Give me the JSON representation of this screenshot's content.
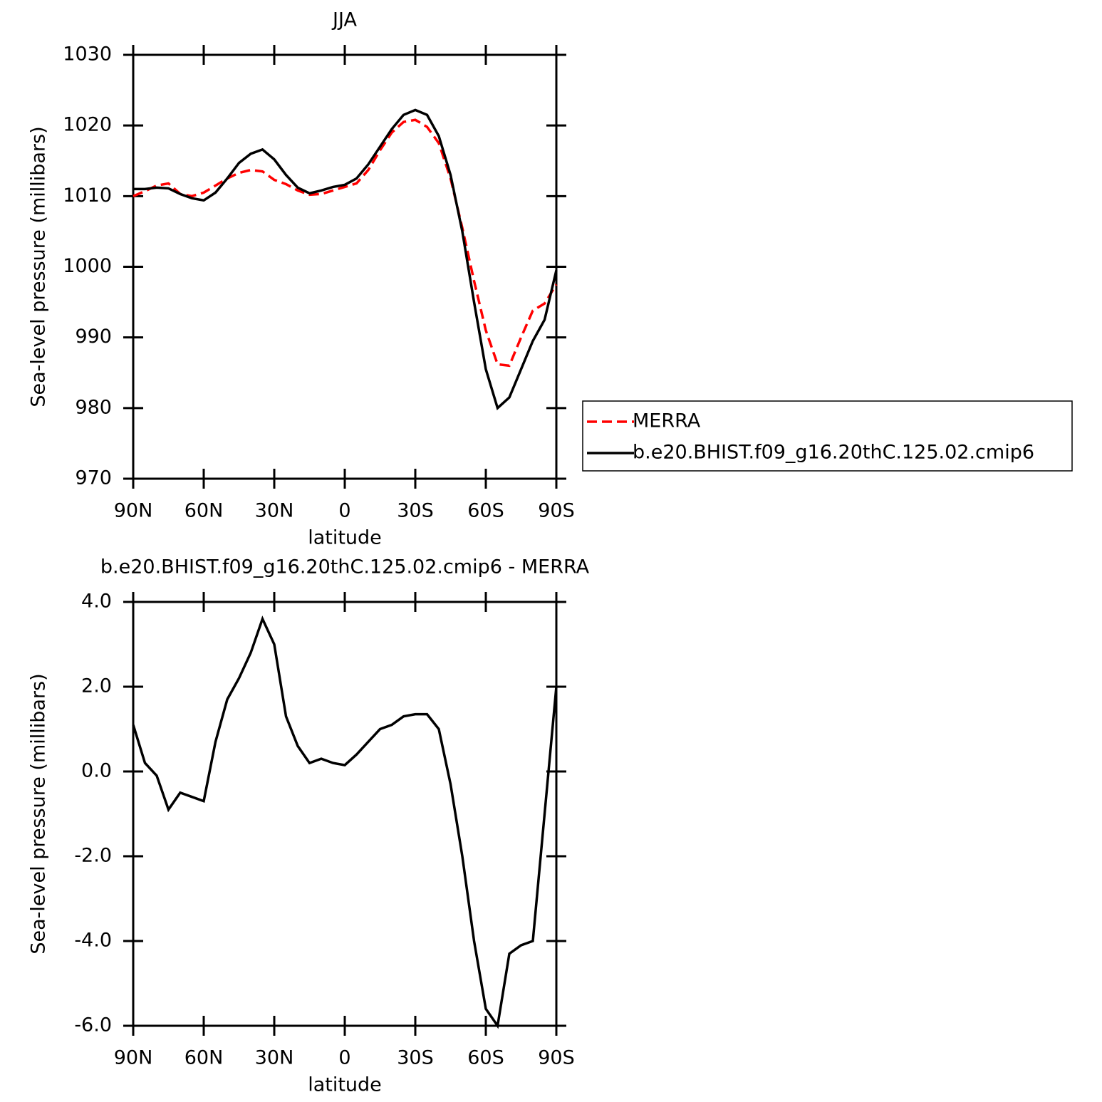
{
  "chart_data": [
    {
      "type": "line",
      "title": "JJA",
      "xlabel": "latitude",
      "ylabel": "Sea-level pressure (millibars)",
      "x": [
        90,
        85,
        80,
        75,
        70,
        65,
        60,
        55,
        50,
        45,
        40,
        35,
        30,
        25,
        20,
        15,
        10,
        5,
        0,
        -5,
        -10,
        -15,
        -20,
        -25,
        -30,
        -35,
        -40,
        -45,
        -50,
        -55,
        -60,
        -65,
        -70,
        -75,
        -80,
        -85,
        -90
      ],
      "xlim": [
        90,
        -90
      ],
      "xticks": [
        {
          "value": 90,
          "label": "90N"
        },
        {
          "value": 60,
          "label": "60N"
        },
        {
          "value": 30,
          "label": "30N"
        },
        0,
        {
          "value": -30,
          "label": "30S"
        },
        {
          "value": -60,
          "label": "60S"
        },
        {
          "value": -90,
          "label": "90S"
        }
      ],
      "ylim": [
        970,
        1030
      ],
      "yticks": [
        970,
        980,
        990,
        1000,
        1010,
        1020,
        1030
      ],
      "legend": "right",
      "series": [
        {
          "name": "MERRA",
          "color": "#ff0000",
          "dashed": true,
          "values": [
            1010,
            1010.7,
            1011.5,
            1011.8,
            1010.3,
            1010,
            1010.5,
            1011.5,
            1012.5,
            1013.3,
            1013.7,
            1013.5,
            1012.3,
            1011.7,
            1010.8,
            1010.2,
            1010.3,
            1010.8,
            1011.3,
            1011.8,
            1013.7,
            1016.5,
            1019,
            1020.5,
            1020.8,
            1019.8,
            1017.5,
            1012.5,
            1005.5,
            998,
            991,
            986.2,
            986,
            990,
            993.8,
            994.8,
            997.5
          ]
        },
        {
          "name": "b.e20.BHIST.f09_g16.20thC.125.02.cmip6",
          "color": "#000000",
          "dashed": false,
          "values": [
            1011,
            1011,
            1011.2,
            1011.1,
            1010.3,
            1009.7,
            1009.4,
            1010.5,
            1012.5,
            1014.7,
            1016,
            1016.6,
            1015.2,
            1013,
            1011.2,
            1010.4,
            1010.8,
            1011.3,
            1011.6,
            1012.5,
            1014.5,
            1017,
            1019.5,
            1021.5,
            1022.2,
            1021.5,
            1018.5,
            1013,
            1005,
            995,
            985.5,
            980,
            981.5,
            985.5,
            989.5,
            992.5,
            999.5
          ]
        }
      ]
    },
    {
      "type": "line",
      "title": "b.e20.BHIST.f09_g16.20thC.125.02.cmip6 - MERRA",
      "xlabel": "latitude",
      "ylabel": "Sea-level pressure (millibars)",
      "x": [
        90,
        85,
        80,
        75,
        70,
        65,
        60,
        55,
        50,
        45,
        40,
        35,
        30,
        25,
        20,
        15,
        10,
        5,
        0,
        -5,
        -10,
        -15,
        -20,
        -25,
        -30,
        -35,
        -40,
        -45,
        -50,
        -55,
        -60,
        -65,
        -70,
        -75,
        -80,
        -85,
        -90
      ],
      "xlim": [
        90,
        -90
      ],
      "xticks": [
        {
          "value": 90,
          "label": "90N"
        },
        {
          "value": 60,
          "label": "60N"
        },
        {
          "value": 30,
          "label": "30N"
        },
        0,
        {
          "value": -30,
          "label": "30S"
        },
        {
          "value": -60,
          "label": "60S"
        },
        {
          "value": -90,
          "label": "90S"
        }
      ],
      "ylim": [
        -6,
        4
      ],
      "yticks": [
        {
          "value": -6,
          "label": "-6.0"
        },
        {
          "value": -4,
          "label": "-4.0"
        },
        {
          "value": -2,
          "label": "-2.0"
        },
        {
          "value": 0,
          "label": "0.0"
        },
        {
          "value": 2,
          "label": "2.0"
        },
        {
          "value": 4,
          "label": "4.0"
        }
      ],
      "series": [
        {
          "color": "#000000",
          "dashed": false,
          "values": [
            1.1,
            0.2,
            -0.1,
            -0.9,
            -0.5,
            -0.6,
            -0.7,
            0.7,
            1.7,
            2.2,
            2.8,
            3.6,
            3.0,
            1.3,
            0.6,
            0.2,
            0.3,
            0.2,
            0.15,
            0.4,
            0.7,
            1.0,
            1.1,
            1.3,
            1.35,
            1.35,
            1.0,
            -0.3,
            -2.0,
            -4.0,
            -5.6,
            -6.0,
            -4.3,
            -4.1,
            -4.0,
            -1.0,
            2.0
          ]
        }
      ]
    }
  ]
}
